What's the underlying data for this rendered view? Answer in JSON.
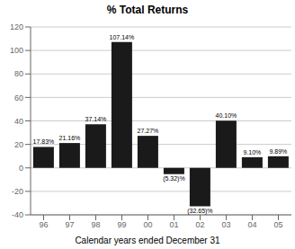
{
  "chart_data": {
    "type": "bar",
    "title": "% Total Returns",
    "xlabel": "Calendar years ended December 31",
    "categories": [
      "96",
      "97",
      "98",
      "99",
      "00",
      "01",
      "02",
      "03",
      "04",
      "05"
    ],
    "values": [
      17.83,
      21.16,
      37.14,
      107.14,
      27.27,
      -5.32,
      -32.65,
      40.1,
      9.1,
      9.89
    ],
    "value_labels": [
      "17.83%",
      "21.16%",
      "37.14%",
      "107.14%",
      "27.27%",
      "(5.32)%",
      "(32.65)%",
      "40.10%",
      "9.10%",
      "9.89%"
    ],
    "color": "#1a1a1a",
    "ylim": [
      -40,
      120
    ],
    "yticks": [
      -40,
      -20,
      0,
      20,
      40,
      60,
      80,
      100,
      120
    ],
    "grid": true,
    "data_labels": true
  }
}
